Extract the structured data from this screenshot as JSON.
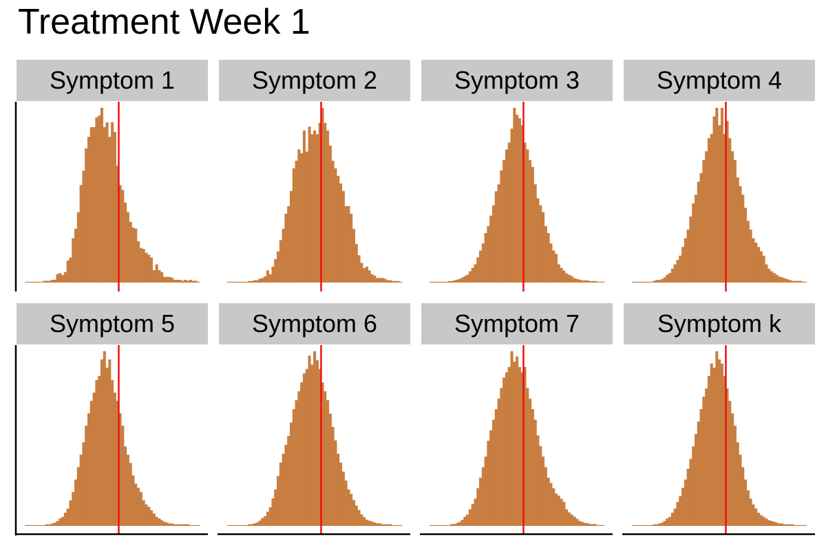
{
  "title": "Treatment Week 1",
  "colors": {
    "bar": "#c87e40",
    "threshold": "#ee1111",
    "strip": "#c8c8c8",
    "axis": "#000000"
  },
  "chart_data": [
    {
      "type": "bar",
      "panel": "Symptom 1",
      "threshold_bin": 36,
      "values": [
        0,
        0,
        0,
        0,
        0,
        0,
        0,
        1,
        1,
        1,
        2,
        2,
        8,
        9,
        7,
        10,
        22,
        25,
        45,
        55,
        72,
        100,
        115,
        138,
        150,
        160,
        160,
        170,
        172,
        180,
        160,
        165,
        150,
        165,
        155,
        120,
        100,
        95,
        82,
        72,
        62,
        56,
        55,
        42,
        35,
        34,
        30,
        28,
        25,
        12,
        18,
        12,
        10,
        5,
        5,
        5,
        4,
        2,
        2,
        2,
        1,
        2,
        1,
        2,
        1,
        1,
        0
      ]
    },
    {
      "type": "bar",
      "panel": "Symptom 2",
      "threshold_bin": 36,
      "values": [
        0,
        0,
        0,
        0,
        0,
        0,
        0,
        0,
        1,
        1,
        2,
        2,
        4,
        5,
        7,
        15,
        10,
        20,
        30,
        40,
        55,
        70,
        90,
        100,
        120,
        150,
        160,
        175,
        170,
        200,
        172,
        205,
        195,
        200,
        195,
        210,
        230,
        210,
        200,
        180,
        160,
        150,
        140,
        130,
        120,
        100,
        100,
        90,
        70,
        50,
        35,
        25,
        18,
        20,
        15,
        10,
        8,
        5,
        5,
        5,
        4,
        2,
        2,
        1,
        1,
        1,
        0
      ]
    },
    {
      "type": "bar",
      "panel": "Symptom 3",
      "threshold_bin": 36,
      "values": [
        0,
        0,
        0,
        0,
        0,
        0,
        0,
        1,
        1,
        2,
        3,
        4,
        6,
        8,
        10,
        15,
        20,
        25,
        35,
        45,
        55,
        70,
        80,
        95,
        110,
        130,
        140,
        160,
        175,
        190,
        200,
        220,
        250,
        240,
        235,
        225,
        200,
        190,
        175,
        165,
        140,
        120,
        110,
        100,
        80,
        70,
        55,
        45,
        40,
        25,
        20,
        16,
        12,
        10,
        8,
        5,
        4,
        3,
        2,
        2,
        2,
        1,
        1,
        1,
        0,
        0,
        0
      ]
    },
    {
      "type": "bar",
      "panel": "Symptom 4",
      "threshold_bin": 36,
      "values": [
        0,
        0,
        0,
        0,
        0,
        0,
        0,
        0,
        1,
        2,
        2,
        3,
        5,
        8,
        10,
        15,
        20,
        25,
        30,
        40,
        50,
        60,
        75,
        90,
        100,
        115,
        125,
        140,
        150,
        165,
        170,
        190,
        200,
        180,
        200,
        170,
        185,
        165,
        150,
        140,
        120,
        110,
        100,
        85,
        70,
        60,
        50,
        45,
        40,
        35,
        30,
        20,
        15,
        12,
        10,
        8,
        6,
        5,
        4,
        3,
        2,
        1,
        1,
        1,
        1,
        0,
        0
      ]
    },
    {
      "type": "bar",
      "panel": "Symptom 5",
      "threshold_bin": 36,
      "values": [
        0,
        0,
        0,
        0,
        0,
        0,
        0,
        0,
        1,
        1,
        2,
        3,
        5,
        8,
        10,
        15,
        20,
        30,
        40,
        55,
        70,
        85,
        100,
        120,
        135,
        150,
        160,
        175,
        180,
        200,
        210,
        190,
        200,
        175,
        160,
        150,
        135,
        120,
        95,
        85,
        75,
        60,
        50,
        45,
        40,
        30,
        25,
        22,
        18,
        14,
        10,
        8,
        6,
        4,
        3,
        2,
        2,
        1,
        1,
        1,
        1,
        1,
        1,
        0,
        0,
        0,
        0
      ]
    },
    {
      "type": "bar",
      "panel": "Symptom 6",
      "threshold_bin": 36,
      "values": [
        0,
        0,
        0,
        0,
        0,
        0,
        0,
        0,
        1,
        1,
        2,
        3,
        5,
        8,
        10,
        15,
        20,
        30,
        40,
        55,
        70,
        80,
        90,
        100,
        115,
        130,
        140,
        150,
        160,
        170,
        175,
        190,
        180,
        195,
        185,
        175,
        160,
        150,
        140,
        125,
        110,
        95,
        80,
        70,
        60,
        50,
        40,
        35,
        28,
        22,
        17,
        12,
        9,
        6,
        5,
        4,
        3,
        2,
        2,
        1,
        1,
        1,
        1,
        0,
        0,
        0,
        0
      ]
    },
    {
      "type": "bar",
      "panel": "Symptom 7",
      "threshold_bin": 36,
      "values": [
        0,
        0,
        0,
        0,
        0,
        0,
        0,
        0,
        1,
        1,
        2,
        3,
        5,
        8,
        10,
        15,
        20,
        25,
        35,
        45,
        55,
        65,
        80,
        90,
        100,
        110,
        120,
        130,
        140,
        145,
        150,
        165,
        155,
        160,
        150,
        145,
        150,
        130,
        120,
        110,
        100,
        85,
        75,
        65,
        55,
        45,
        40,
        35,
        30,
        28,
        25,
        22,
        15,
        12,
        10,
        8,
        6,
        4,
        3,
        2,
        2,
        1,
        1,
        1,
        0,
        0,
        0
      ]
    },
    {
      "type": "bar",
      "panel": "Symptom k",
      "threshold_bin": 36,
      "values": [
        0,
        0,
        0,
        0,
        0,
        0,
        0,
        0,
        1,
        1,
        2,
        3,
        5,
        8,
        10,
        15,
        20,
        28,
        35,
        45,
        55,
        68,
        80,
        95,
        110,
        125,
        140,
        155,
        165,
        180,
        195,
        190,
        210,
        200,
        195,
        180,
        165,
        150,
        135,
        120,
        100,
        85,
        70,
        55,
        42,
        32,
        25,
        20,
        15,
        12,
        10,
        8,
        6,
        5,
        4,
        3,
        2,
        2,
        1,
        1,
        1,
        1,
        0,
        0,
        0,
        0,
        0
      ]
    }
  ]
}
